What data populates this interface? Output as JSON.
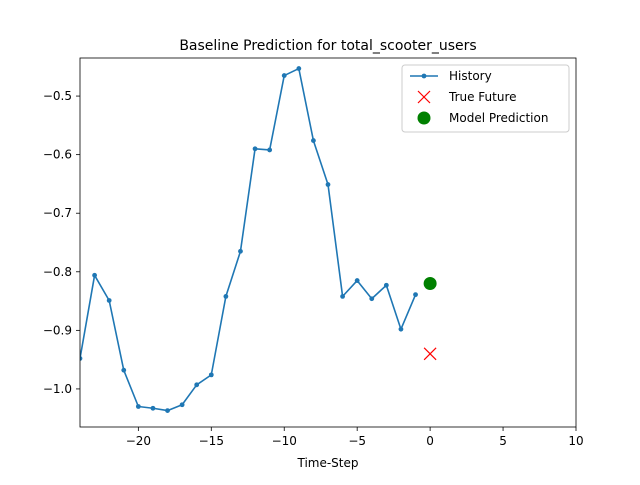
{
  "chart_data": {
    "type": "line",
    "title": "Baseline Prediction for total_scooter_users",
    "xlabel": "Time-Step",
    "ylabel": "",
    "xlim": [
      -24,
      10
    ],
    "ylim": [
      -1.065,
      -0.435
    ],
    "xticks": [
      -20,
      -15,
      -10,
      -5,
      0,
      5,
      10
    ],
    "xtick_labels": [
      "−20",
      "−15",
      "−10",
      "−5",
      "0",
      "5",
      "10"
    ],
    "yticks": [
      -1.0,
      -0.9,
      -0.8,
      -0.7,
      -0.6,
      -0.5
    ],
    "ytick_labels": [
      "−1.0",
      "−0.9",
      "−0.8",
      "−0.7",
      "−0.6",
      "−0.5"
    ],
    "grid": false,
    "legend_position": "top-right",
    "colors": {
      "history": "#1f77b4",
      "true_future": "#ff0000",
      "model_prediction": "#008000"
    },
    "series": [
      {
        "name": "History",
        "marker": "dot",
        "x": [
          -24,
          -23,
          -22,
          -21,
          -20,
          -19,
          -18,
          -17,
          -16,
          -15,
          -14,
          -13,
          -12,
          -11,
          -10,
          -9,
          -8,
          -7,
          -6,
          -5,
          -4,
          -3,
          -2,
          -1
        ],
        "y": [
          -0.948,
          -0.806,
          -0.849,
          -0.968,
          -1.03,
          -1.033,
          -1.037,
          -1.027,
          -0.993,
          -0.976,
          -0.842,
          -0.765,
          -0.59,
          -0.592,
          -0.465,
          -0.453,
          -0.576,
          -0.651,
          -0.842,
          -0.815,
          -0.846,
          -0.823,
          -0.898,
          -0.839
        ]
      },
      {
        "name": "True Future",
        "marker": "x",
        "x": [
          0
        ],
        "y": [
          -0.94
        ]
      },
      {
        "name": "Model Prediction",
        "marker": "big-dot",
        "x": [
          0
        ],
        "y": [
          -0.82
        ]
      }
    ]
  }
}
